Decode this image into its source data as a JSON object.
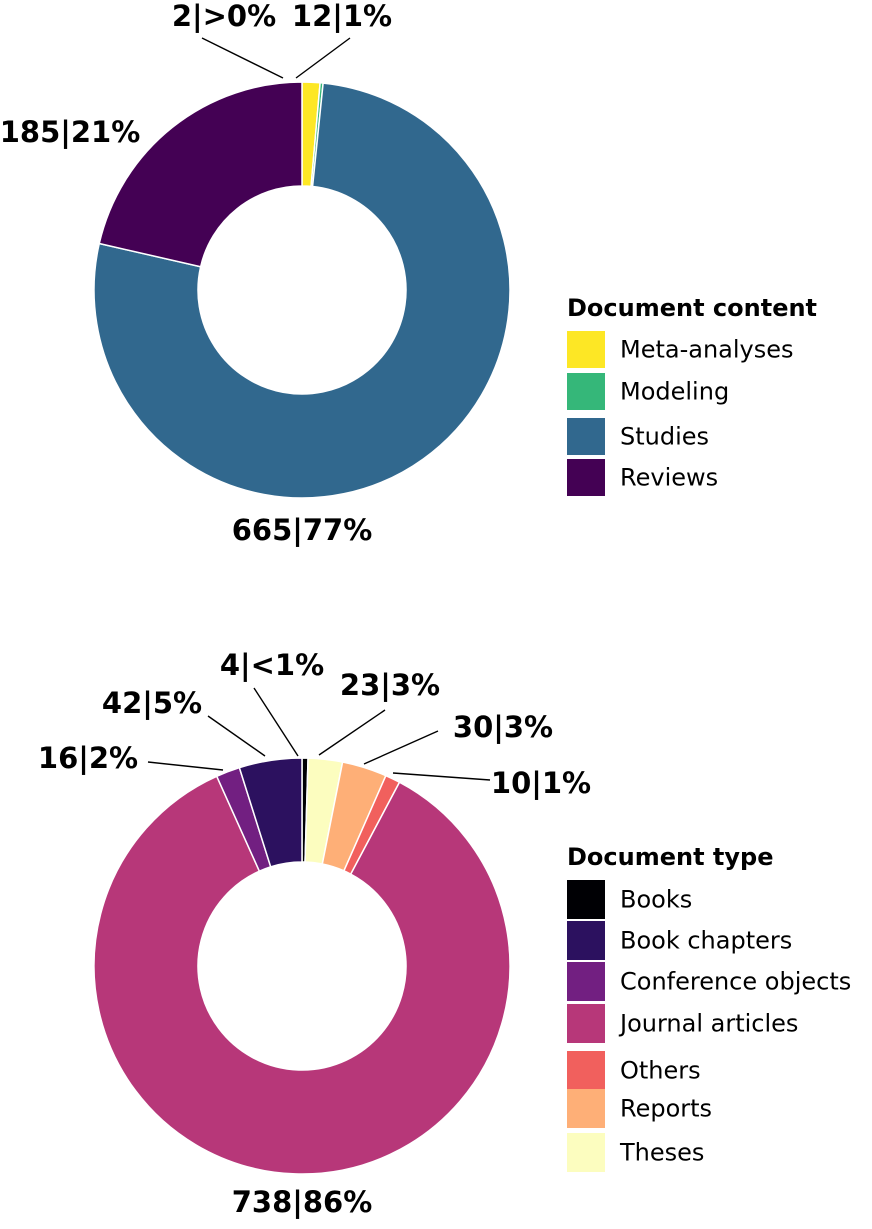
{
  "chart_data": [
    {
      "type": "pie",
      "legend_title": "Document content",
      "legend_position": "right",
      "categories": [
        "Meta-analyses",
        "Modeling",
        "Studies",
        "Reviews"
      ],
      "values": [
        12,
        2,
        665,
        185
      ],
      "colors": [
        "#fde725",
        "#35b779",
        "#31688e",
        "#440154"
      ],
      "labels": [
        "12|1%",
        "2|>0%",
        "665|77%",
        "185|21%"
      ]
    },
    {
      "type": "pie",
      "legend_title": "Document type",
      "legend_position": "right",
      "categories": [
        "Books",
        "Book chapters",
        "Conference objects",
        "Journal articles",
        "Others",
        "Reports",
        "Theses"
      ],
      "values": [
        4,
        42,
        16,
        738,
        10,
        30,
        23
      ],
      "colors": [
        "#000004",
        "#2c115f",
        "#721f81",
        "#b73779",
        "#f1605d",
        "#feaf77",
        "#fcfdbf"
      ],
      "labels": [
        "4|<1%",
        "42|5%",
        "16|2%",
        "738|86%",
        "10|1%",
        "30|3%",
        "23|3%"
      ]
    }
  ]
}
